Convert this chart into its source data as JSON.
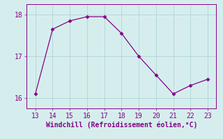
{
  "x": [
    13,
    14,
    15,
    16,
    17,
    18,
    19,
    20,
    21,
    22,
    23
  ],
  "y": [
    16.1,
    17.65,
    17.85,
    17.95,
    17.95,
    17.55,
    17.0,
    16.55,
    16.1,
    16.3,
    16.45
  ],
  "line_color": "#880088",
  "marker": "D",
  "marker_size": 2.5,
  "background_color": "#d5eeed",
  "grid_color": "#b0d4d4",
  "xlabel": "Windchill (Refroidissement éolien,°C)",
  "xlabel_color": "#880088",
  "tick_color": "#880088",
  "spine_color": "#880088",
  "xlim": [
    12.5,
    23.5
  ],
  "ylim": [
    15.75,
    18.25
  ],
  "xticks": [
    13,
    14,
    15,
    16,
    17,
    18,
    19,
    20,
    21,
    22,
    23
  ],
  "yticks": [
    16,
    17,
    18
  ],
  "xlabel_fontsize": 7.0,
  "tick_fontsize": 7.0
}
